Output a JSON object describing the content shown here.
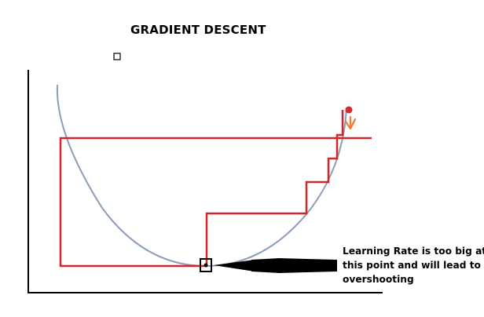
{
  "title": "GRADIENT DESCENT",
  "annotation": {
    "lines": [
      "Learning Rate is too big at",
      "this point and will lead to",
      "overshooting"
    ]
  },
  "colors": {
    "curve": "#8A9CB8",
    "steps": "#D0262C",
    "ball": "#D42B2B",
    "down_arrow": "#F07A2E",
    "axes": "#000000",
    "pointer_arrow": "#000000"
  },
  "icons": {
    "ball": "red-ball-icon",
    "down_arrow": "orange-down-arrow-icon",
    "minimum_marker": "boxed-dot-marker-icon",
    "pointer_arrow": "black-pointer-arrow-icon",
    "stray_square": "small-square-icon"
  }
}
